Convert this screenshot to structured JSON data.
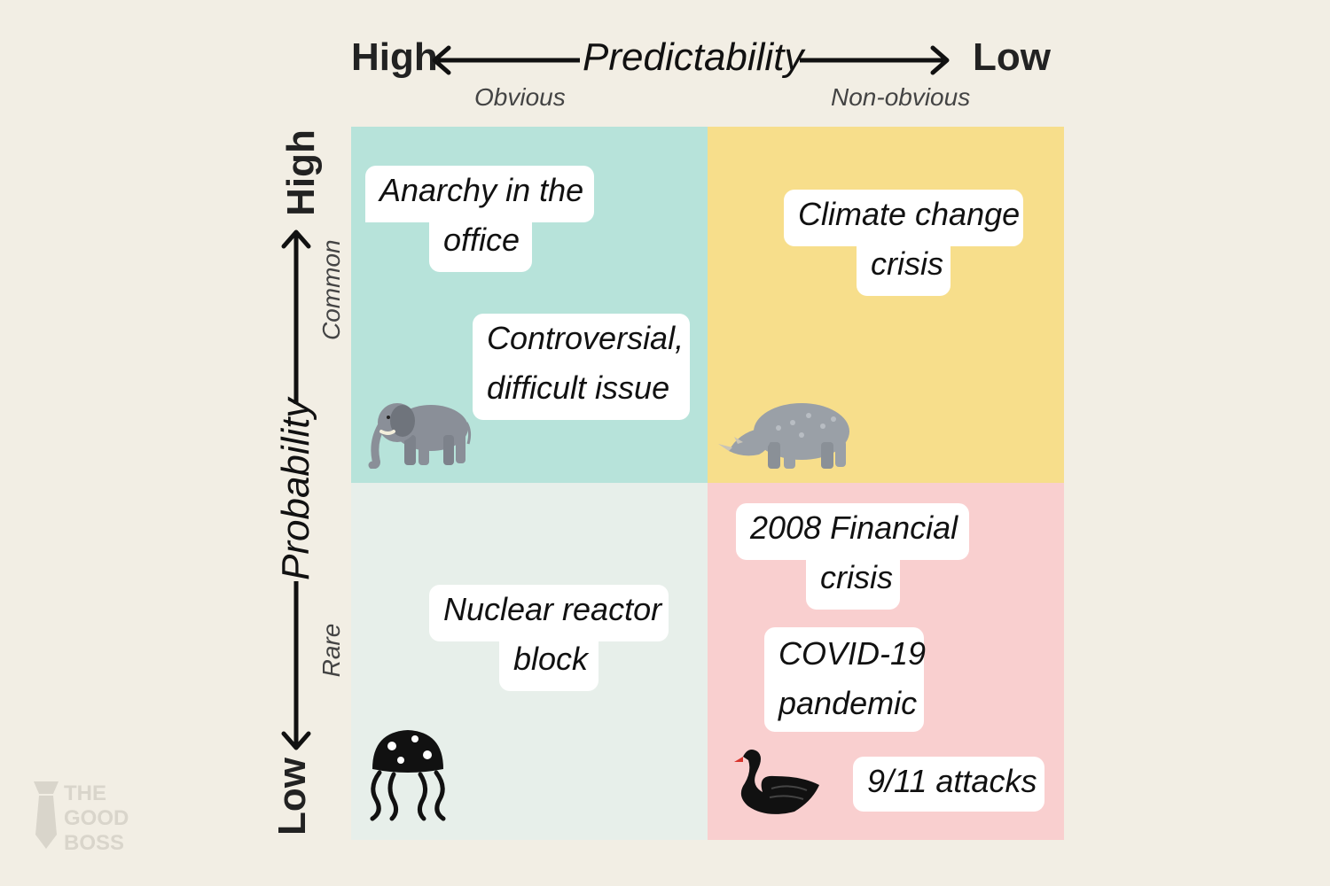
{
  "top_axis": {
    "left_end": "High",
    "title": "Predictability",
    "right_end": "Low",
    "left_sub": "Obvious",
    "right_sub": "Non-obvious"
  },
  "left_axis": {
    "top_end": "High",
    "title": "Probability",
    "bottom_end": "Low",
    "top_sub": "Common",
    "bottom_sub": "Rare"
  },
  "quadrants": {
    "top_left": {
      "color": "#b7e3da",
      "icon": "elephant-icon",
      "cards": [
        {
          "line1": "Anarchy in the",
          "line2": "office"
        },
        {
          "line1": "Controversial,",
          "line2": "difficult issue"
        }
      ]
    },
    "top_right": {
      "color": "#f7de8b",
      "icon": "rhino-icon",
      "cards": [
        {
          "line1": "Climate change",
          "line2": "crisis"
        }
      ]
    },
    "bottom_left": {
      "color": "#e7efea",
      "icon": "jellyfish-icon",
      "cards": [
        {
          "line1": "Nuclear reactor",
          "line2": "block"
        }
      ]
    },
    "bottom_right": {
      "color": "#f9cfcf",
      "icon": "black-swan-icon",
      "cards": [
        {
          "line1": "2008 Financial",
          "line2": "crisis"
        },
        {
          "line1": "COVID-19",
          "line2": "pandemic"
        },
        {
          "line1": "9/11 attacks"
        }
      ]
    }
  },
  "logo": {
    "line1": "THE",
    "line2": "GOOD",
    "line3": "BOSS"
  }
}
